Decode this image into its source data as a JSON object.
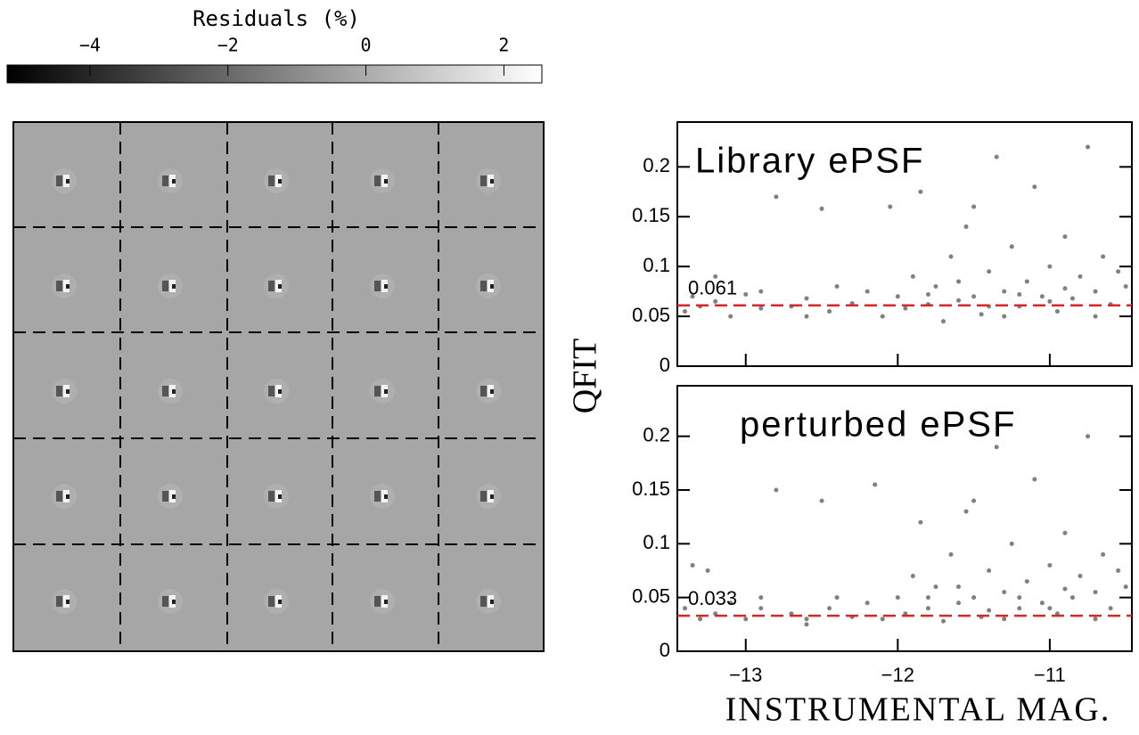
{
  "chart_data": [
    {
      "type": "colorbar",
      "title": "Residuals (%)",
      "xlim": [
        -5.2,
        2.55
      ],
      "xticks": [
        {
          "value": -4,
          "label": "−4"
        },
        {
          "value": -2,
          "label": "−2"
        },
        0,
        2
      ],
      "colors": [
        "#000000",
        "#ffffff"
      ]
    },
    {
      "type": "scatter",
      "annotation": "Library ePSF",
      "ylabel": "QFIT",
      "color": "#808080",
      "xlim": [
        -13.45,
        -10.46
      ],
      "ylim": [
        0,
        0.245
      ],
      "yticks": [
        0,
        0.05,
        0.1,
        0.15,
        0.2
      ],
      "reference_line": {
        "value": 0.061,
        "color": "#d62728"
      },
      "x": [
        -13.4,
        -13.35,
        -13.3,
        -13.2,
        -13.1,
        -13.0,
        -12.9,
        -12.8,
        -12.7,
        -12.6,
        -12.5,
        -12.45,
        -12.3,
        -12.2,
        -12.1,
        -12.05,
        -12.0,
        -11.95,
        -11.9,
        -11.85,
        -11.8,
        -11.75,
        -11.7,
        -11.65,
        -11.6,
        -11.55,
        -11.5,
        -11.45,
        -11.4,
        -11.35,
        -11.3,
        -11.25,
        -11.2,
        -11.15,
        -11.1,
        -11.05,
        -11.0,
        -10.95,
        -10.9,
        -10.85,
        -10.8,
        -10.75,
        -10.7,
        -10.65,
        -10.6,
        -10.55,
        -10.5,
        -11.3,
        -11.6,
        -11.8,
        -12.4,
        -12.6,
        -11.0,
        -10.7,
        -11.4,
        -11.2,
        -10.9,
        -12.9,
        -13.2,
        -11.5
      ],
      "y": [
        0.055,
        0.07,
        0.06,
        0.065,
        0.05,
        0.072,
        0.058,
        0.17,
        0.06,
        0.068,
        0.158,
        0.055,
        0.063,
        0.075,
        0.05,
        0.16,
        0.07,
        0.058,
        0.09,
        0.175,
        0.062,
        0.08,
        0.045,
        0.11,
        0.066,
        0.14,
        0.07,
        0.052,
        0.095,
        0.21,
        0.075,
        0.12,
        0.06,
        0.085,
        0.18,
        0.07,
        0.1,
        0.055,
        0.13,
        0.068,
        0.09,
        0.22,
        0.075,
        0.11,
        0.062,
        0.095,
        0.08,
        0.05,
        0.085,
        0.072,
        0.08,
        0.05,
        0.065,
        0.05,
        0.06,
        0.072,
        0.078,
        0.075,
        0.09,
        0.16
      ]
    },
    {
      "type": "scatter",
      "annotation": "perturbed ePSF",
      "xlabel": "INSTRUMENTAL MAG.",
      "color": "#808080",
      "xlim": [
        -13.45,
        -10.46
      ],
      "ylim": [
        0,
        0.247
      ],
      "yticks": [
        0,
        0.05,
        0.1,
        0.15,
        0.2
      ],
      "xticks": [
        {
          "value": -13,
          "label": "−13"
        },
        {
          "value": -12,
          "label": "−12"
        },
        {
          "value": -11,
          "label": "−11"
        }
      ],
      "reference_line": {
        "value": 0.033,
        "color": "#d62728"
      },
      "x": [
        -13.4,
        -13.35,
        -13.3,
        -13.2,
        -13.1,
        -13.0,
        -12.9,
        -12.8,
        -12.7,
        -12.6,
        -12.5,
        -12.45,
        -12.3,
        -12.2,
        -12.1,
        -12.15,
        -12.0,
        -11.95,
        -11.9,
        -11.85,
        -11.8,
        -11.75,
        -11.7,
        -11.65,
        -11.6,
        -11.55,
        -11.5,
        -11.45,
        -11.4,
        -11.35,
        -11.3,
        -11.25,
        -11.2,
        -11.15,
        -11.1,
        -11.05,
        -11.0,
        -10.95,
        -10.9,
        -10.85,
        -10.8,
        -10.75,
        -10.7,
        -10.65,
        -10.6,
        -10.55,
        -10.5,
        -11.3,
        -11.6,
        -11.8,
        -12.4,
        -12.6,
        -11.0,
        -10.7,
        -11.4,
        -11.2,
        -10.9,
        -12.9,
        -13.25,
        -11.5
      ],
      "y": [
        0.04,
        0.08,
        0.03,
        0.035,
        0.045,
        0.03,
        0.04,
        0.15,
        0.035,
        0.03,
        0.14,
        0.04,
        0.032,
        0.045,
        0.03,
        0.155,
        0.05,
        0.035,
        0.07,
        0.12,
        0.04,
        0.06,
        0.028,
        0.09,
        0.045,
        0.13,
        0.05,
        0.032,
        0.075,
        0.19,
        0.055,
        0.1,
        0.04,
        0.065,
        0.16,
        0.045,
        0.08,
        0.035,
        0.11,
        0.05,
        0.07,
        0.2,
        0.055,
        0.09,
        0.04,
        0.075,
        0.06,
        0.03,
        0.06,
        0.05,
        0.05,
        0.025,
        0.04,
        0.03,
        0.038,
        0.05,
        0.058,
        0.05,
        0.075,
        0.14
      ]
    }
  ]
}
